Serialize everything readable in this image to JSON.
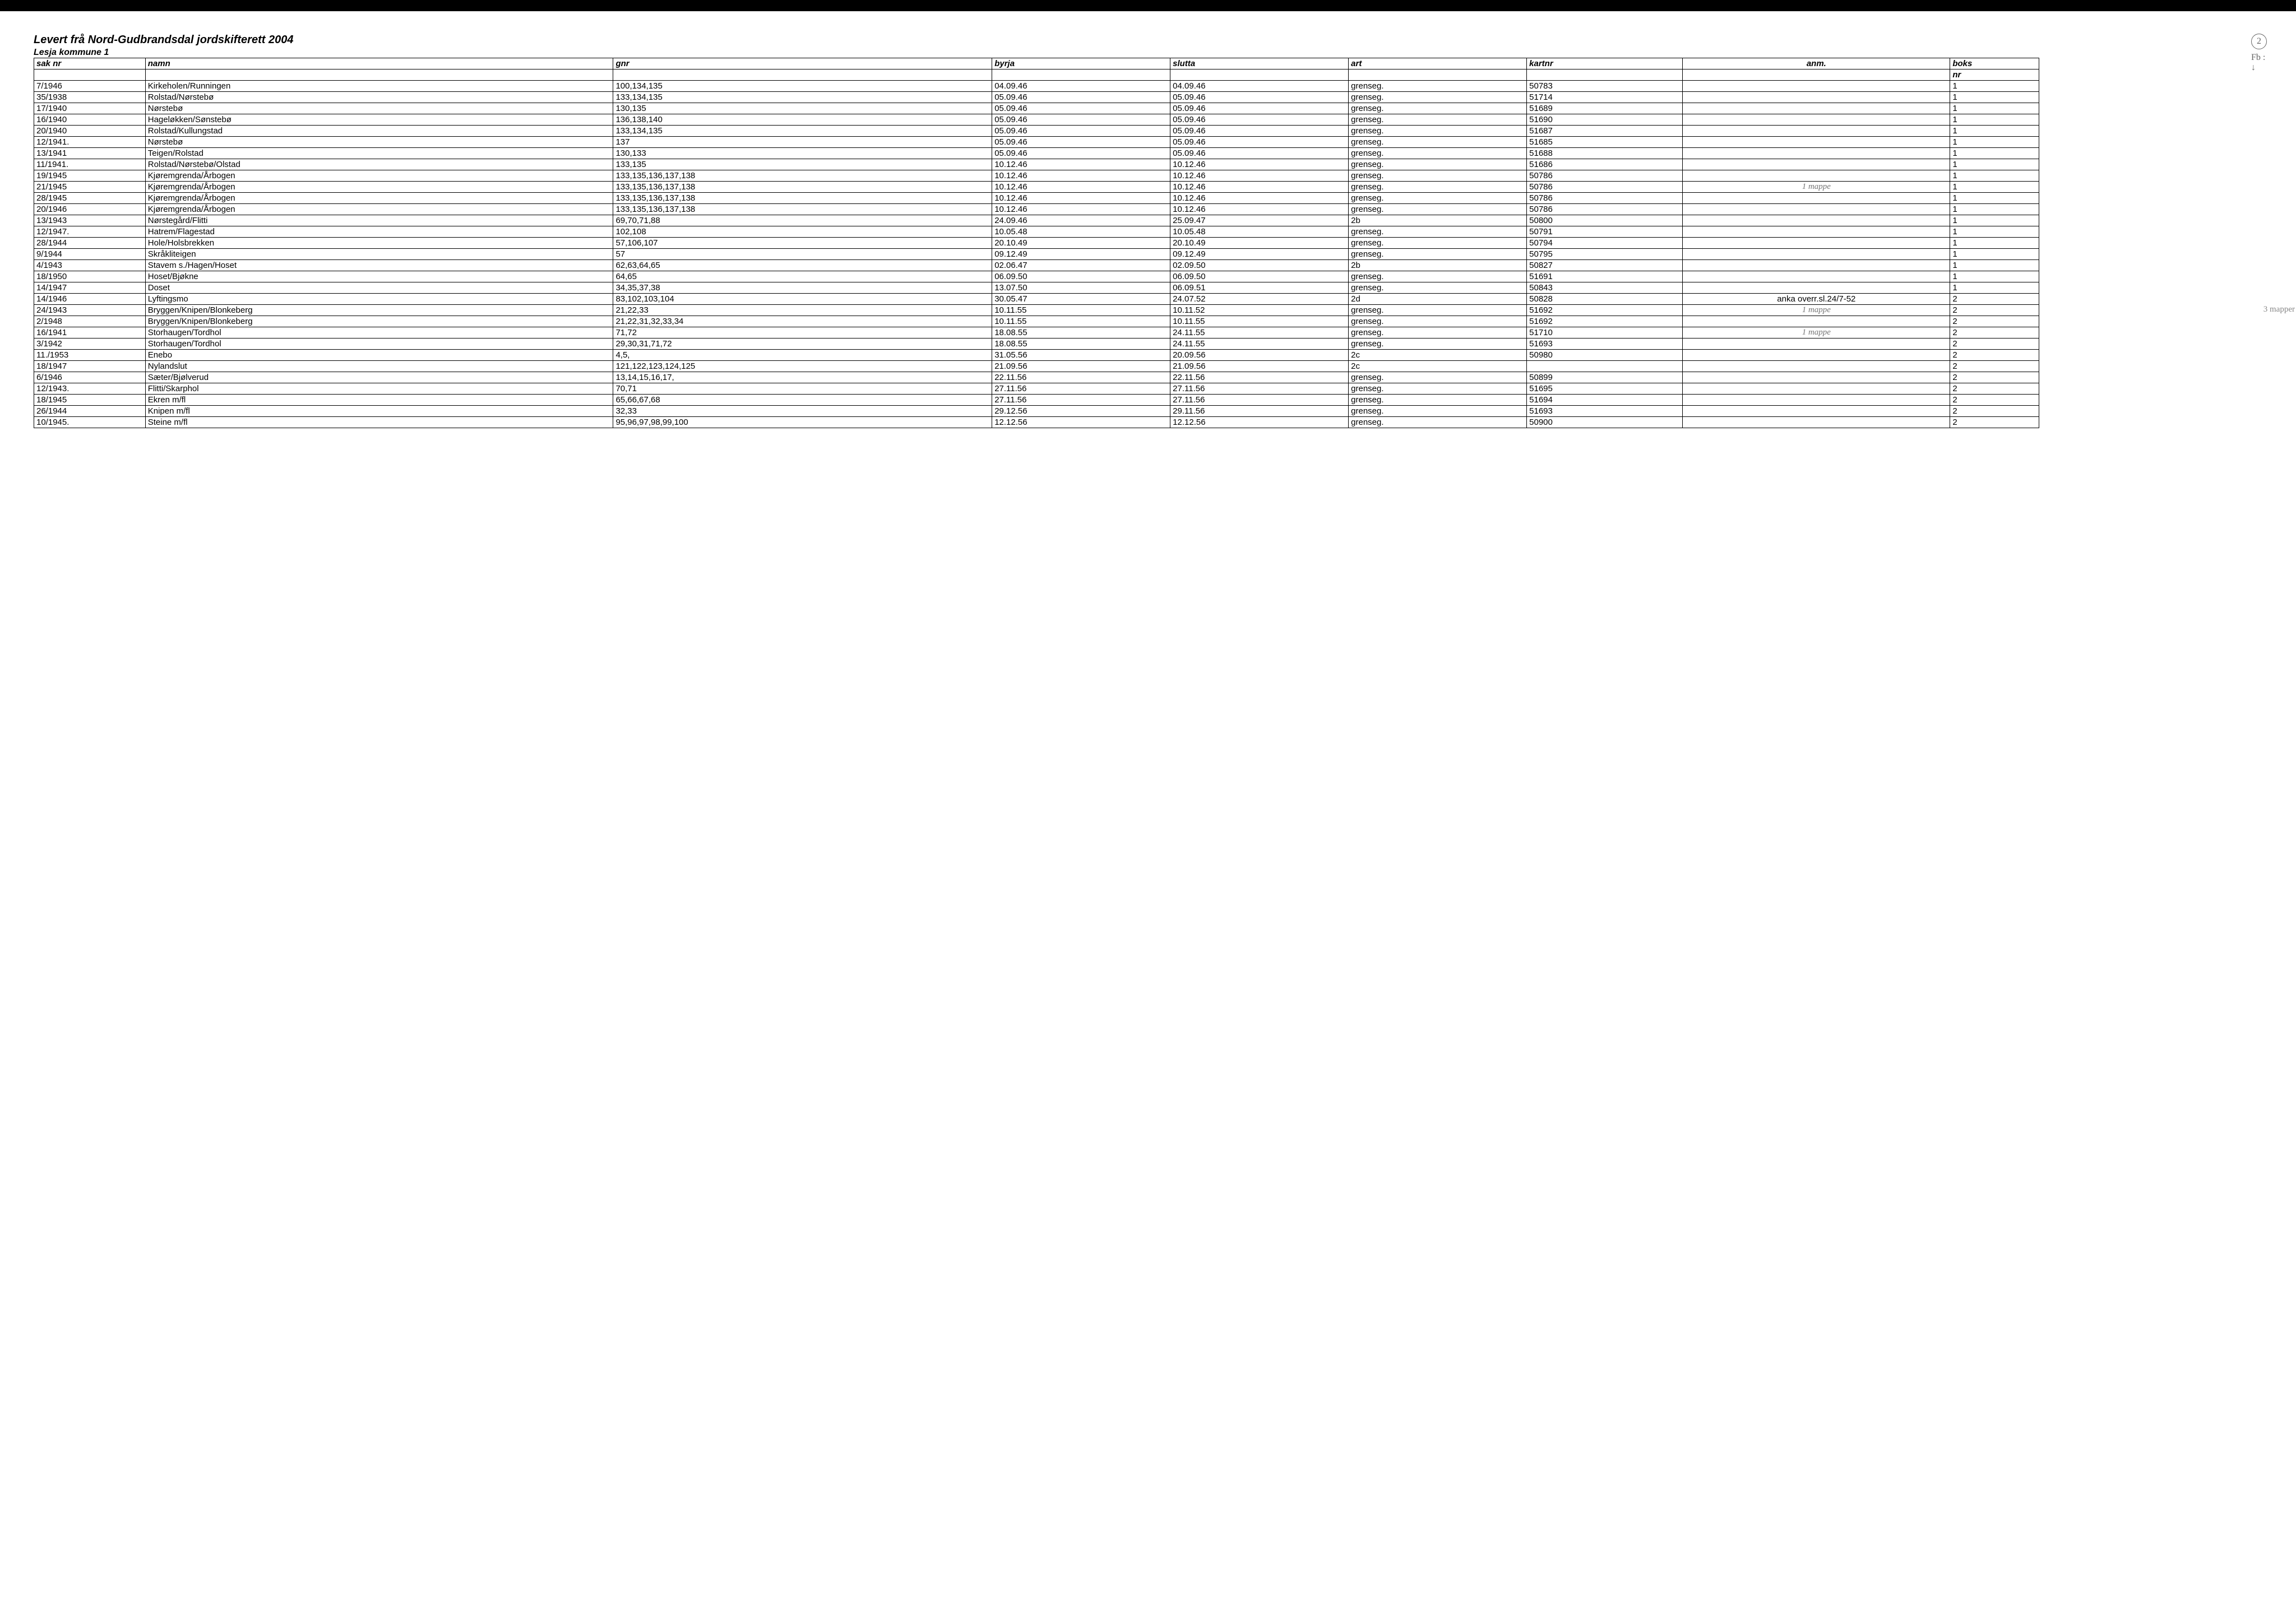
{
  "title": "Levert frå Nord-Gudbrandsdal jordskifterett 2004",
  "subtitle": "Lesja kommune  1",
  "columns": [
    "sak nr",
    "namn",
    "gnr",
    "byrja",
    "slutta",
    "art",
    "kartnr",
    "anm.",
    "boks"
  ],
  "subheader": [
    "",
    "",
    "",
    "",
    "",
    "",
    "",
    "",
    "nr"
  ],
  "margin_top": {
    "circle": "2",
    "text": "Fb :",
    "arrow": "↓"
  },
  "margin_side_note": "3 mapper",
  "rows": [
    {
      "sak": "7/1946",
      "namn": "Kirkeholen/Runningen",
      "gnr": "100,134,135",
      "byrja": "04.09.46",
      "slutta": "04.09.46",
      "art": "grenseg.",
      "kartnr": "50783",
      "anm": "",
      "boks": "1"
    },
    {
      "sak": "35/1938",
      "namn": "Rolstad/Nørstebø",
      "gnr": "133,134,135",
      "byrja": "05.09.46",
      "slutta": "05.09.46",
      "art": "grenseg.",
      "kartnr": "51714",
      "anm": "",
      "boks": "1"
    },
    {
      "sak": "17/1940",
      "namn": "Nørstebø",
      "gnr": "130,135",
      "byrja": "05.09.46",
      "slutta": "05.09.46",
      "art": "grenseg.",
      "kartnr": "51689",
      "anm": "",
      "boks": "1"
    },
    {
      "sak": "16/1940",
      "namn": "Hageløkken/Sønstebø",
      "gnr": "136,138,140",
      "byrja": "05.09.46",
      "slutta": "05.09.46",
      "art": "grenseg.",
      "kartnr": "51690",
      "anm": "",
      "boks": "1"
    },
    {
      "sak": "20/1940",
      "namn": "Rolstad/Kullungstad",
      "gnr": "133,134,135",
      "byrja": "05.09.46",
      "slutta": "05.09.46",
      "art": "grenseg.",
      "kartnr": "51687",
      "anm": "",
      "boks": "1"
    },
    {
      "sak": "12/1941.",
      "namn": "Nørstebø",
      "gnr": "137",
      "byrja": "05.09.46",
      "slutta": "05.09.46",
      "art": "grenseg.",
      "kartnr": "51685",
      "anm": "",
      "boks": "1"
    },
    {
      "sak": "13/1941",
      "namn": "Teigen/Rolstad",
      "gnr": "130,133",
      "byrja": "05.09.46",
      "slutta": "05.09.46",
      "art": "grenseg.",
      "kartnr": "51688",
      "anm": "",
      "boks": "1"
    },
    {
      "sak": "11/1941.",
      "namn": "Rolstad/Nørstebø/Olstad",
      "gnr": "133,135",
      "byrja": "10.12.46",
      "slutta": "10.12.46",
      "art": "grenseg.",
      "kartnr": "51686",
      "anm": "",
      "boks": "1"
    },
    {
      "sak": "19/1945",
      "namn": "Kjøremgrenda/Årbogen",
      "gnr": "133,135,136,137,138",
      "byrja": "10.12.46",
      "slutta": "10.12.46",
      "art": "grenseg.",
      "kartnr": "50786",
      "anm": "",
      "boks": "1"
    },
    {
      "sak": "21/1945",
      "namn": "Kjøremgrenda/Årbogen",
      "gnr": "133,135,136,137,138",
      "byrja": "10.12.46",
      "slutta": "10.12.46",
      "art": "grenseg.",
      "kartnr": "50786",
      "anm": "1 mappe",
      "anm_hand": true,
      "boks": "1"
    },
    {
      "sak": "28/1945",
      "namn": "Kjøremgrenda/Årbogen",
      "gnr": "133,135,136,137,138",
      "byrja": "10.12.46",
      "slutta": "10.12.46",
      "art": "grenseg.",
      "kartnr": "50786",
      "anm": "",
      "boks": "1"
    },
    {
      "sak": "20/1946",
      "namn": "Kjøremgrenda/Årbogen",
      "gnr": "133,135,136,137,138",
      "byrja": "10.12.46",
      "slutta": "10.12.46",
      "art": "grenseg.",
      "kartnr": "50786",
      "anm": "",
      "boks": "1"
    },
    {
      "sak": "13/1943",
      "namn": "Nørstegård/Flitti",
      "gnr": "69,70,71,88",
      "byrja": "24.09.46",
      "slutta": "25.09.47",
      "art": "2b",
      "kartnr": "50800",
      "anm": "",
      "boks": "1"
    },
    {
      "sak": "12/1947.",
      "namn": "Hatrem/Flagestad",
      "gnr": "102,108",
      "byrja": "10.05.48",
      "slutta": "10.05.48",
      "art": "grenseg.",
      "kartnr": "50791",
      "anm": "",
      "boks": "1"
    },
    {
      "sak": "28/1944",
      "namn": "Hole/Holsbrekken",
      "gnr": "57,106,107",
      "byrja": "20.10.49",
      "slutta": "20.10.49",
      "art": "grenseg.",
      "kartnr": "50794",
      "anm": "",
      "boks": "1"
    },
    {
      "sak": "9/1944",
      "namn": "Skråkliteigen",
      "gnr": "57",
      "byrja": "09.12.49",
      "slutta": "09.12.49",
      "art": "grenseg.",
      "kartnr": "50795",
      "anm": "",
      "boks": "1"
    },
    {
      "sak": "4/1943",
      "namn": "Stavem s./Hagen/Hoset",
      "gnr": "62,63,64,65",
      "byrja": "02.06.47",
      "slutta": "02.09.50",
      "art": "2b",
      "kartnr": "50827",
      "anm": "",
      "boks": "1"
    },
    {
      "sak": "18/1950",
      "namn": "Hoset/Bjøkne",
      "gnr": "64,65",
      "byrja": "06.09.50",
      "slutta": "06.09.50",
      "art": "grenseg.",
      "kartnr": "51691",
      "anm": "",
      "boks": "1"
    },
    {
      "sak": "14/1947",
      "namn": "Doset",
      "gnr": "34,35,37,38",
      "byrja": "13.07.50",
      "slutta": "06.09.51",
      "art": "grenseg.",
      "kartnr": "50843",
      "anm": "",
      "boks": "1"
    },
    {
      "sak": "14/1946",
      "namn": "Lyftingsmo",
      "gnr": "83,102,103,104",
      "byrja": "30.05.47",
      "slutta": "24.07.52",
      "art": "2d",
      "kartnr": "50828",
      "anm": "anka overr.sl.24/7-52",
      "boks": "2"
    },
    {
      "sak": "24/1943",
      "namn": "Bryggen/Knipen/Blonkeberg",
      "gnr": "21,22,33",
      "byrja": "10.11.55",
      "slutta": "10.11.52",
      "art": "grenseg.",
      "kartnr": "51692",
      "anm": "1 mappe",
      "anm_hand": true,
      "boks": "2"
    },
    {
      "sak": "2/1948",
      "namn": "Bryggen/Knipen/Blonkeberg",
      "gnr": "21,22,31,32,33,34",
      "byrja": "10.11.55",
      "slutta": "10.11.55",
      "art": "grenseg.",
      "kartnr": "51692",
      "anm": "",
      "boks": "2"
    },
    {
      "sak": "16/1941",
      "namn": "Storhaugen/Tordhol",
      "gnr": "71,72",
      "byrja": "18.08.55",
      "slutta": "24.11.55",
      "art": "grenseg.",
      "kartnr": "51710",
      "anm": "1 mappe",
      "anm_hand": true,
      "boks": "2"
    },
    {
      "sak": "3/1942",
      "namn": "Storhaugen/Tordhol",
      "gnr": "29,30,31,71,72",
      "byrja": "18.08.55",
      "slutta": "24.11.55",
      "art": "grenseg.",
      "kartnr": "51693",
      "anm": "",
      "boks": "2"
    },
    {
      "sak": "11./1953",
      "namn": "Enebo",
      "gnr": "4,5,",
      "byrja": "31.05.56",
      "slutta": "20.09.56",
      "art": "2c",
      "kartnr": "50980",
      "anm": "",
      "boks": "2"
    },
    {
      "sak": "18/1947",
      "namn": "Nylandslut",
      "gnr": "121,122,123,124,125",
      "byrja": "21.09.56",
      "slutta": "21.09.56",
      "art": "2c",
      "kartnr": "",
      "anm": "",
      "boks": "2"
    },
    {
      "sak": "6/1946",
      "namn": "Sæter/Bjølverud",
      "gnr": "13,14,15,16,17,",
      "byrja": "22.11.56",
      "slutta": "22.11.56",
      "art": "grenseg.",
      "kartnr": "50899",
      "anm": "",
      "boks": "2"
    },
    {
      "sak": "12/1943.",
      "namn": "Flitti/Skarphol",
      "gnr": "70,71",
      "byrja": "27.11.56",
      "slutta": "27.11.56",
      "art": "grenseg.",
      "kartnr": "51695",
      "anm": "",
      "boks": "2"
    },
    {
      "sak": "18/1945",
      "namn": "Ekren m/fl",
      "gnr": "65,66,67,68",
      "byrja": "27.11.56",
      "slutta": "27.11.56",
      "art": "grenseg.",
      "kartnr": "51694",
      "anm": "",
      "boks": "2"
    },
    {
      "sak": "26/1944",
      "namn": "Knipen m/fl",
      "gnr": "32,33",
      "byrja": "29.12.56",
      "slutta": "29.11.56",
      "art": "grenseg.",
      "kartnr": "51693",
      "anm": "",
      "boks": "2"
    },
    {
      "sak": "10/1945.",
      "namn": "Steine m/fl",
      "gnr": "95,96,97,98,99,100",
      "byrja": "12.12.56",
      "slutta": "12.12.56",
      "art": "grenseg.",
      "kartnr": "50900",
      "anm": "",
      "boks": "2"
    }
  ]
}
